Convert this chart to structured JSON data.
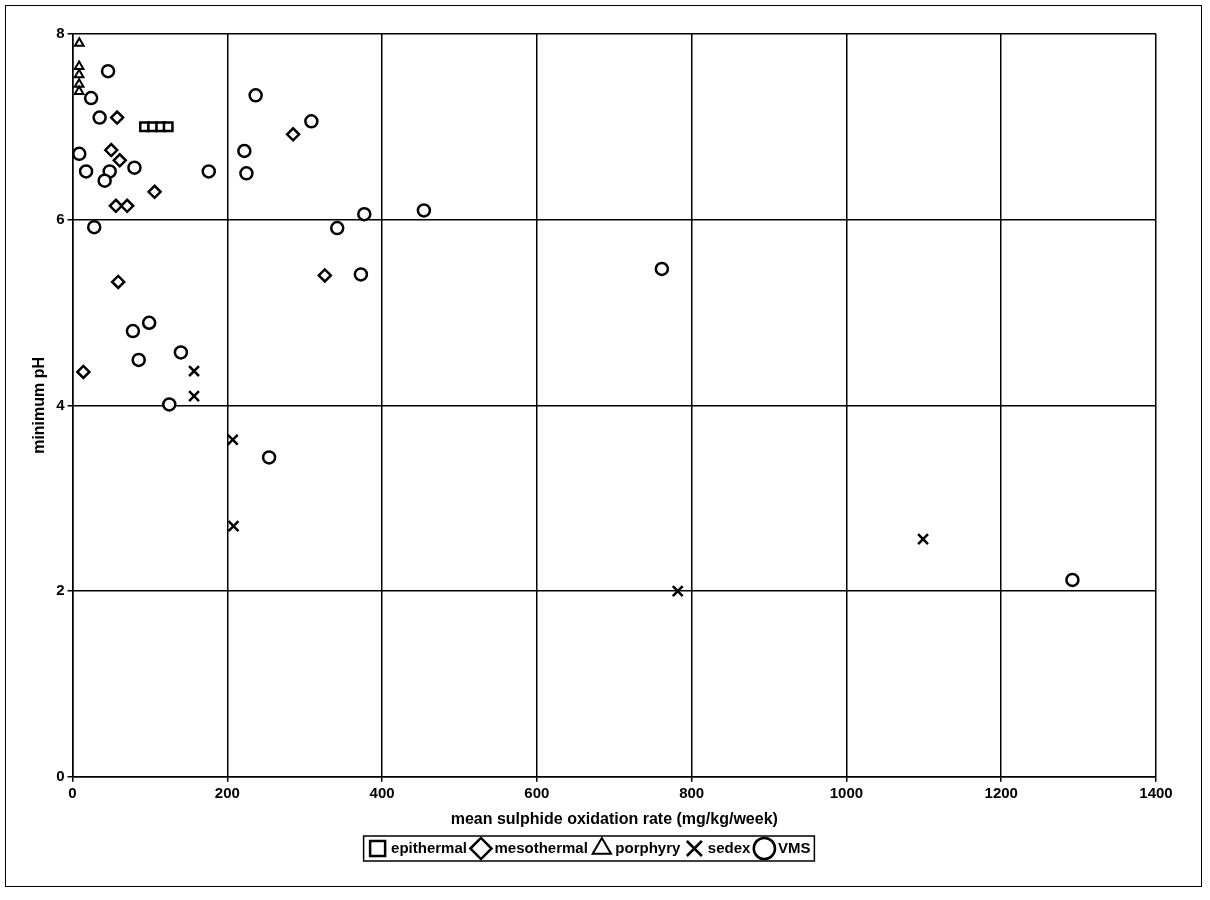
{
  "chart_data": {
    "type": "scatter",
    "xlabel": "mean sulphide oxidation rate (mg/kg/week)",
    "ylabel": "minimum pH",
    "xlim": [
      0,
      1400
    ],
    "xticks": [
      0,
      200,
      400,
      600,
      800,
      1000,
      1200,
      1400
    ],
    "ylim": [
      0,
      8
    ],
    "yticks": [
      0,
      2,
      4,
      6,
      8
    ],
    "grid": true,
    "legend": "bottom",
    "series": [
      {
        "name": "epithermal",
        "color": "#000000",
        "marker": "square",
        "x": [
          93,
          103.5,
          114,
          123.6
        ],
        "values": [
          7.0,
          7.0,
          7.0,
          7.0
        ]
      },
      {
        "name": "mesothermal",
        "color": "#000000",
        "marker": "diamond",
        "x": [
          57.6,
          50,
          61,
          106,
          56,
          70.6,
          59,
          14,
          285,
          326
        ],
        "values": [
          7.1,
          6.75,
          6.64,
          6.3,
          6.15,
          6.15,
          5.33,
          4.36,
          6.92,
          5.4
        ]
      },
      {
        "name": "porphyry",
        "color": "#000000",
        "marker": "triangle",
        "x": [
          8.7,
          8.5,
          8.5,
          8.5,
          8.5
        ],
        "values": [
          7.9,
          7.65,
          7.56,
          7.46,
          7.38
        ]
      },
      {
        "name": "sedex",
        "color": "#000000",
        "marker": "cross",
        "x": [
          157,
          157,
          207,
          208,
          782,
          1099
        ],
        "values": [
          4.37,
          4.1,
          3.63,
          2.7,
          2.0,
          2.56
        ]
      },
      {
        "name": "VMS",
        "color": "#000000",
        "marker": "circle",
        "x": [
          45.9,
          24,
          35,
          8.7,
          17.5,
          80,
          48,
          41.5,
          176,
          28,
          99,
          78,
          85.5,
          140,
          125,
          254,
          236.6,
          308.6,
          222,
          224.7,
          377,
          342,
          454,
          372.6,
          761.5,
          1292
        ],
        "values": [
          7.6,
          7.31,
          7.1,
          6.71,
          6.52,
          6.56,
          6.52,
          6.42,
          6.52,
          5.92,
          4.89,
          4.8,
          4.49,
          4.57,
          4.01,
          3.44,
          7.34,
          7.06,
          6.74,
          6.5,
          6.06,
          5.91,
          6.1,
          5.41,
          5.47,
          2.12
        ]
      }
    ]
  }
}
